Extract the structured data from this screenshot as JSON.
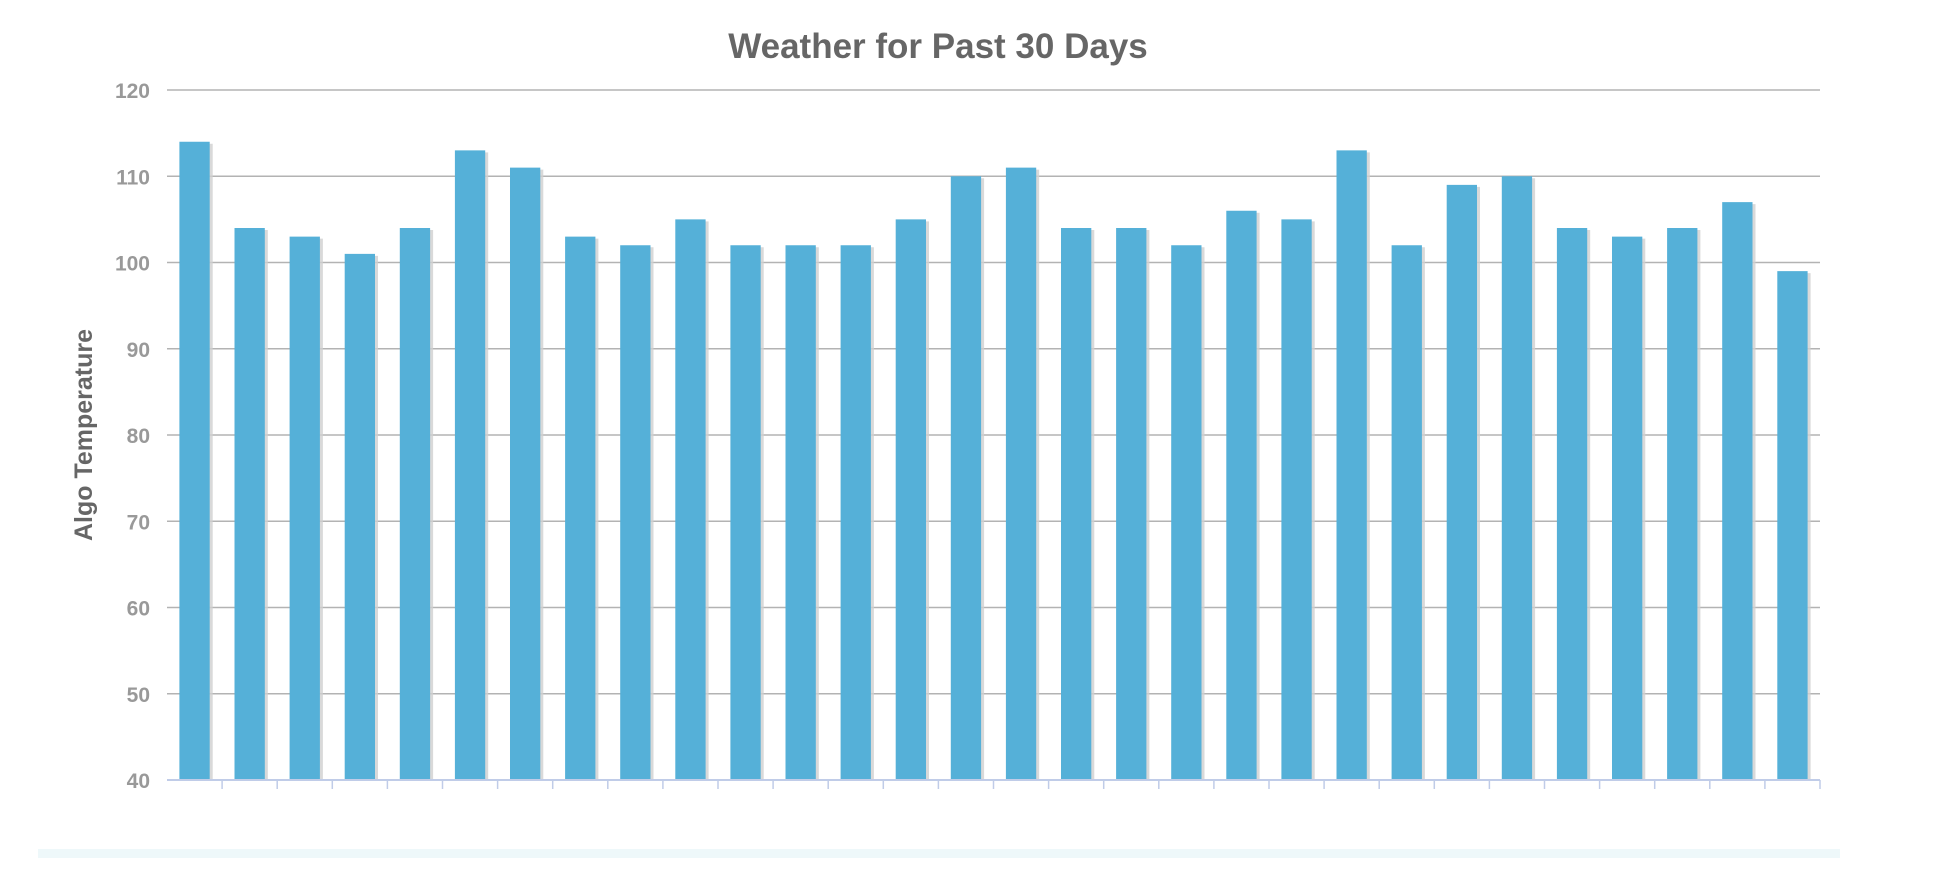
{
  "chart_data": {
    "type": "bar",
    "title": "Weather for Past 30 Days",
    "xlabel": "",
    "ylabel": "Algo Temperature",
    "ylim": [
      40,
      120
    ],
    "yticks": [
      40,
      50,
      60,
      70,
      80,
      90,
      100,
      110,
      120
    ],
    "grid": true,
    "legend": "none",
    "bar_color": "#55b0d8",
    "values": [
      114,
      104,
      103,
      101,
      104,
      113,
      111,
      103,
      102,
      105,
      102,
      102,
      102,
      105,
      110,
      111,
      104,
      104,
      102,
      106,
      105,
      113,
      102,
      109,
      110,
      104,
      103,
      104,
      107,
      99
    ]
  }
}
